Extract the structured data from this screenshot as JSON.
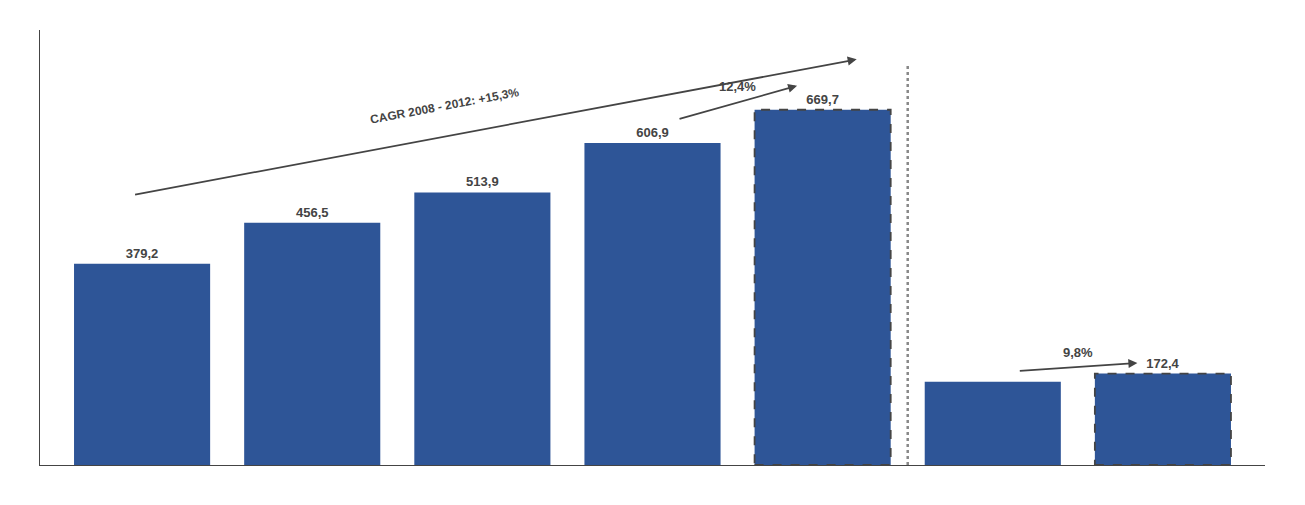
{
  "chart_data": {
    "type": "bar",
    "categories": [
      null,
      null,
      null,
      null,
      null,
      null,
      null
    ],
    "values": [
      379.2,
      456.5,
      513.9,
      606.9,
      669.7,
      157.1,
      172.4
    ],
    "value_labels": [
      "379,2",
      "456,5",
      "513,9",
      "606,9",
      "669,7",
      null,
      "172,4"
    ],
    "data_labels": true,
    "color": "#2e5597",
    "ylim": [
      0,
      820
    ],
    "grid": false,
    "tick_labels": false,
    "annotations": [
      "12,4%",
      "9,8%",
      "CAGR 2008 - 2012: +15,3%"
    ]
  }
}
